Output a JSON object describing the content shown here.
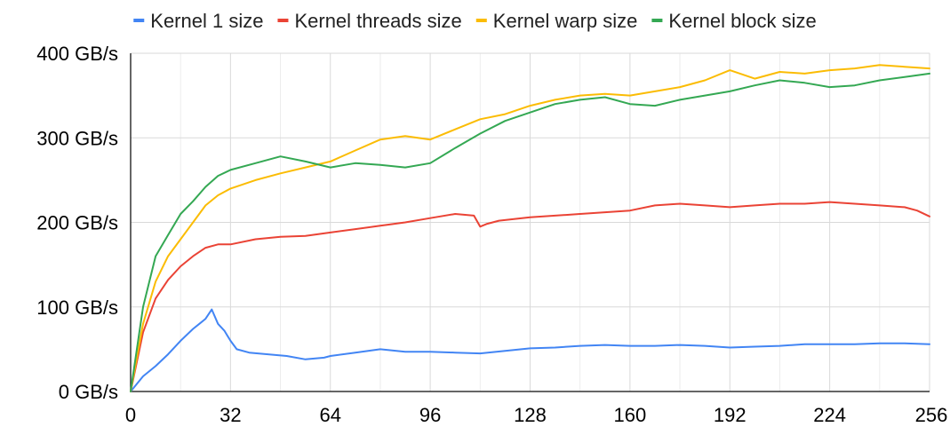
{
  "chart_data": {
    "type": "line",
    "title": "",
    "xlabel": "",
    "ylabel": "",
    "xlim": [
      0,
      256
    ],
    "ylim": [
      0,
      400
    ],
    "x_ticks": [
      0,
      32,
      64,
      96,
      128,
      160,
      192,
      224,
      256
    ],
    "x_tick_labels": [
      "0",
      "32",
      "64",
      "96",
      "128",
      "160",
      "192",
      "224",
      "256"
    ],
    "y_ticks": [
      0,
      100,
      200,
      300,
      400
    ],
    "y_tick_labels": [
      "0 GB/s",
      "100 GB/s",
      "200 GB/s",
      "300 GB/s",
      "400 GB/s"
    ],
    "grid": true,
    "legend_position": "top",
    "series": [
      {
        "name": "Kernel 1 size",
        "color": "#4285f4",
        "points": [
          [
            0,
            0
          ],
          [
            4,
            18
          ],
          [
            8,
            30
          ],
          [
            12,
            44
          ],
          [
            16,
            60
          ],
          [
            20,
            74
          ],
          [
            22,
            80
          ],
          [
            24,
            86
          ],
          [
            26,
            97
          ],
          [
            28,
            80
          ],
          [
            30,
            72
          ],
          [
            32,
            60
          ],
          [
            34,
            50
          ],
          [
            38,
            46
          ],
          [
            44,
            44
          ],
          [
            50,
            42
          ],
          [
            56,
            38
          ],
          [
            62,
            40
          ],
          [
            64,
            42
          ],
          [
            72,
            46
          ],
          [
            80,
            50
          ],
          [
            88,
            47
          ],
          [
            96,
            47
          ],
          [
            104,
            46
          ],
          [
            112,
            45
          ],
          [
            120,
            48
          ],
          [
            128,
            51
          ],
          [
            136,
            52
          ],
          [
            144,
            54
          ],
          [
            152,
            55
          ],
          [
            160,
            54
          ],
          [
            168,
            54
          ],
          [
            176,
            55
          ],
          [
            184,
            54
          ],
          [
            192,
            52
          ],
          [
            200,
            53
          ],
          [
            208,
            54
          ],
          [
            216,
            56
          ],
          [
            224,
            56
          ],
          [
            232,
            56
          ],
          [
            240,
            57
          ],
          [
            248,
            57
          ],
          [
            256,
            56
          ]
        ]
      },
      {
        "name": "Kernel threads size",
        "color": "#ea4335",
        "points": [
          [
            0,
            0
          ],
          [
            4,
            70
          ],
          [
            8,
            110
          ],
          [
            12,
            132
          ],
          [
            16,
            148
          ],
          [
            20,
            160
          ],
          [
            24,
            170
          ],
          [
            28,
            174
          ],
          [
            32,
            174
          ],
          [
            40,
            180
          ],
          [
            48,
            183
          ],
          [
            56,
            184
          ],
          [
            64,
            188
          ],
          [
            72,
            192
          ],
          [
            80,
            196
          ],
          [
            88,
            200
          ],
          [
            96,
            205
          ],
          [
            104,
            210
          ],
          [
            110,
            208
          ],
          [
            112,
            195
          ],
          [
            114,
            198
          ],
          [
            118,
            202
          ],
          [
            128,
            206
          ],
          [
            136,
            208
          ],
          [
            144,
            210
          ],
          [
            152,
            212
          ],
          [
            160,
            214
          ],
          [
            168,
            220
          ],
          [
            176,
            222
          ],
          [
            184,
            220
          ],
          [
            192,
            218
          ],
          [
            200,
            220
          ],
          [
            208,
            222
          ],
          [
            216,
            222
          ],
          [
            224,
            224
          ],
          [
            232,
            222
          ],
          [
            240,
            220
          ],
          [
            248,
            218
          ],
          [
            252,
            214
          ],
          [
            256,
            207
          ]
        ]
      },
      {
        "name": "Kernel warp size",
        "color": "#fbbc04",
        "points": [
          [
            0,
            0
          ],
          [
            4,
            80
          ],
          [
            8,
            130
          ],
          [
            12,
            160
          ],
          [
            16,
            180
          ],
          [
            20,
            200
          ],
          [
            24,
            220
          ],
          [
            28,
            232
          ],
          [
            32,
            240
          ],
          [
            40,
            250
          ],
          [
            48,
            258
          ],
          [
            56,
            265
          ],
          [
            64,
            272
          ],
          [
            72,
            285
          ],
          [
            80,
            298
          ],
          [
            88,
            302
          ],
          [
            96,
            298
          ],
          [
            104,
            310
          ],
          [
            112,
            322
          ],
          [
            120,
            328
          ],
          [
            128,
            338
          ],
          [
            136,
            345
          ],
          [
            144,
            350
          ],
          [
            152,
            352
          ],
          [
            160,
            350
          ],
          [
            168,
            355
          ],
          [
            176,
            360
          ],
          [
            184,
            368
          ],
          [
            192,
            380
          ],
          [
            200,
            370
          ],
          [
            208,
            378
          ],
          [
            216,
            376
          ],
          [
            224,
            380
          ],
          [
            232,
            382
          ],
          [
            240,
            386
          ],
          [
            248,
            384
          ],
          [
            256,
            382
          ]
        ]
      },
      {
        "name": "Kernel block size",
        "color": "#34a853",
        "points": [
          [
            0,
            0
          ],
          [
            4,
            100
          ],
          [
            8,
            160
          ],
          [
            12,
            185
          ],
          [
            16,
            210
          ],
          [
            20,
            225
          ],
          [
            24,
            242
          ],
          [
            28,
            255
          ],
          [
            32,
            262
          ],
          [
            40,
            270
          ],
          [
            48,
            278
          ],
          [
            56,
            272
          ],
          [
            64,
            265
          ],
          [
            72,
            270
          ],
          [
            80,
            268
          ],
          [
            88,
            265
          ],
          [
            96,
            270
          ],
          [
            104,
            288
          ],
          [
            112,
            305
          ],
          [
            120,
            320
          ],
          [
            128,
            330
          ],
          [
            136,
            340
          ],
          [
            144,
            345
          ],
          [
            152,
            348
          ],
          [
            160,
            340
          ],
          [
            168,
            338
          ],
          [
            176,
            345
          ],
          [
            184,
            350
          ],
          [
            192,
            355
          ],
          [
            200,
            362
          ],
          [
            208,
            368
          ],
          [
            216,
            365
          ],
          [
            224,
            360
          ],
          [
            232,
            362
          ],
          [
            240,
            368
          ],
          [
            248,
            372
          ],
          [
            256,
            376
          ]
        ]
      }
    ]
  }
}
